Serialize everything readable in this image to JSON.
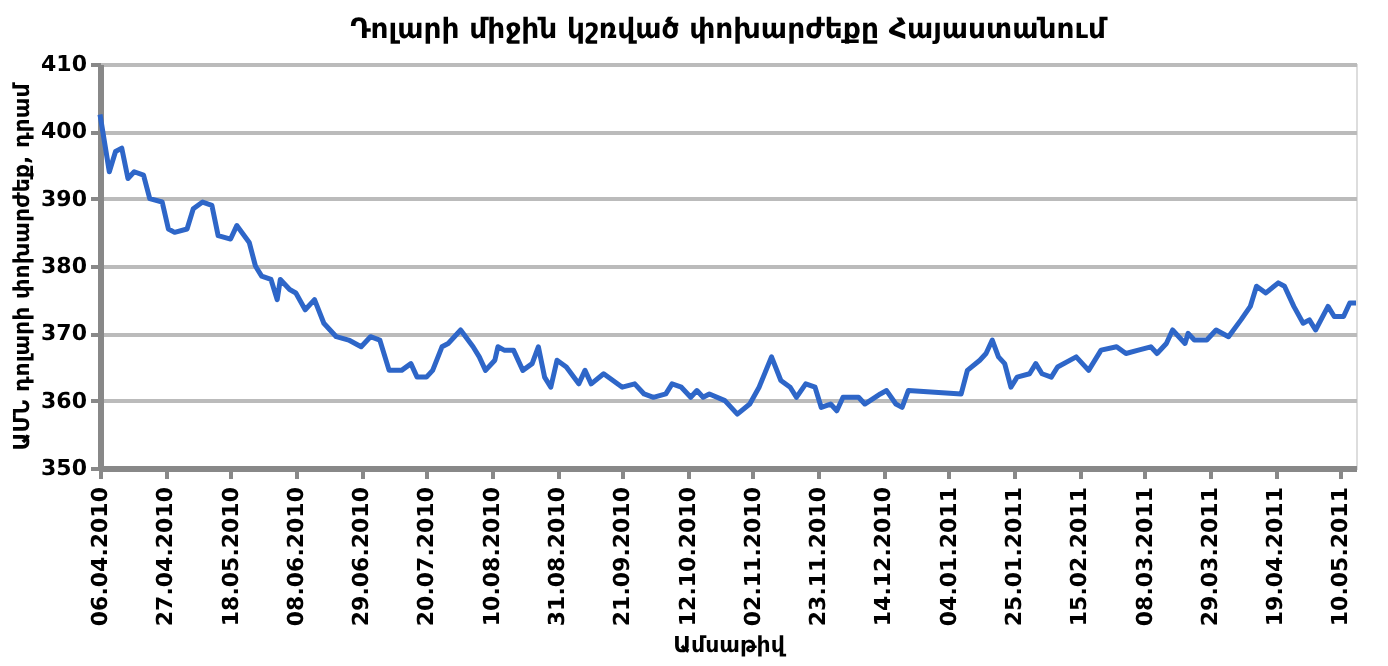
{
  "chart_data": {
    "type": "line",
    "title": "Դոլարի միջին կշռված փոխարժեքը Հայաստանում",
    "xlabel": "Ամսաթիվ",
    "ylabel": "ԱՄՆ դոլարի փոխարժեք, դրամ",
    "x": [
      "2010-04-06",
      "2010-04-09",
      "2010-04-11",
      "2010-04-13",
      "2010-04-15",
      "2010-04-17",
      "2010-04-20",
      "2010-04-22",
      "2010-04-26",
      "2010-04-28",
      "2010-04-30",
      "2010-05-04",
      "2010-05-06",
      "2010-05-09",
      "2010-05-12",
      "2010-05-14",
      "2010-05-18",
      "2010-05-20",
      "2010-05-24",
      "2010-05-26",
      "2010-05-28",
      "2010-05-31",
      "2010-06-02",
      "2010-06-03",
      "2010-06-06",
      "2010-06-08",
      "2010-06-11",
      "2010-06-14",
      "2010-06-17",
      "2010-06-21",
      "2010-06-25",
      "2010-06-29",
      "2010-07-02",
      "2010-07-05",
      "2010-07-08",
      "2010-07-12",
      "2010-07-15",
      "2010-07-17",
      "2010-07-20",
      "2010-07-22",
      "2010-07-25",
      "2010-07-27",
      "2010-07-31",
      "2010-08-04",
      "2010-08-06",
      "2010-08-08",
      "2010-08-11",
      "2010-08-12",
      "2010-08-14",
      "2010-08-17",
      "2010-08-20",
      "2010-08-23",
      "2010-08-25",
      "2010-08-27",
      "2010-08-29",
      "2010-08-31",
      "2010-09-03",
      "2010-09-07",
      "2010-09-09",
      "2010-09-11",
      "2010-09-15",
      "2010-09-21",
      "2010-09-25",
      "2010-09-28",
      "2010-10-01",
      "2010-10-05",
      "2010-10-07",
      "2010-10-10",
      "2010-10-13",
      "2010-10-15",
      "2010-10-17",
      "2010-10-19",
      "2010-10-24",
      "2010-10-28",
      "2010-11-01",
      "2010-11-04",
      "2010-11-08",
      "2010-11-11",
      "2010-11-14",
      "2010-11-16",
      "2010-11-19",
      "2010-11-22",
      "2010-11-24",
      "2010-11-27",
      "2010-11-29",
      "2010-12-01",
      "2010-12-06",
      "2010-12-08",
      "2010-12-13",
      "2010-12-15",
      "2010-12-18",
      "2010-12-20",
      "2010-12-22",
      "2011-01-08",
      "2011-01-10",
      "2011-01-14",
      "2011-01-16",
      "2011-01-18",
      "2011-01-20",
      "2011-01-22",
      "2011-01-24",
      "2011-01-26",
      "2011-01-30",
      "2011-02-01",
      "2011-02-03",
      "2011-02-06",
      "2011-02-08",
      "2011-02-14",
      "2011-02-16",
      "2011-02-18",
      "2011-02-22",
      "2011-02-27",
      "2011-03-02",
      "2011-03-06",
      "2011-03-10",
      "2011-03-12",
      "2011-03-15",
      "2011-03-17",
      "2011-03-19",
      "2011-03-21",
      "2011-03-22",
      "2011-03-24",
      "2011-03-28",
      "2011-03-31",
      "2011-04-04",
      "2011-04-08",
      "2011-04-11",
      "2011-04-13",
      "2011-04-16",
      "2011-04-20",
      "2011-04-22",
      "2011-04-25",
      "2011-04-28",
      "2011-04-30",
      "2011-05-02",
      "2011-05-06",
      "2011-05-08",
      "2011-05-11",
      "2011-05-13",
      "2011-05-15"
    ],
    "series": [
      {
        "color": "#2e66c8",
        "values": [
          402.5,
          394,
          397,
          397.5,
          393,
          394,
          393.5,
          390,
          389.5,
          385.5,
          385,
          385.5,
          388.5,
          389.5,
          389,
          384.5,
          384,
          386,
          383.5,
          380,
          378.5,
          378,
          375,
          378,
          376.5,
          376,
          373.5,
          375,
          371.5,
          369.5,
          369,
          368,
          369.5,
          369,
          364.5,
          364.5,
          365.5,
          363.5,
          363.5,
          364.5,
          368,
          368.5,
          370.5,
          368,
          366.5,
          364.5,
          366,
          368,
          367.5,
          367.5,
          364.5,
          365.5,
          368,
          363.5,
          362,
          366,
          365,
          362.5,
          364.5,
          362.5,
          364,
          362,
          362.5,
          361,
          360.5,
          361,
          362.5,
          362,
          360.5,
          361.5,
          360.5,
          361,
          360,
          358,
          359.5,
          362,
          366.5,
          363,
          362,
          360.5,
          362.5,
          362,
          359,
          359.5,
          358.5,
          360.5,
          360.5,
          359.5,
          361,
          361.5,
          359.5,
          359,
          361.5,
          361,
          364.5,
          366,
          367,
          369,
          366.5,
          365.5,
          362,
          363.5,
          364,
          365.5,
          364,
          363.5,
          365,
          366.5,
          365.5,
          364.5,
          367.5,
          368,
          367,
          367.5,
          368,
          367,
          368.5,
          370.5,
          369.5,
          368.5,
          370,
          369,
          369,
          370.5,
          369.5,
          372,
          374,
          377,
          376,
          377.5,
          377,
          374,
          371.5,
          372,
          370.5,
          374,
          372.5,
          372.5,
          374.5,
          374.5
        ]
      }
    ],
    "xlim": [
      "2010-04-06",
      "2011-05-15"
    ],
    "xticks": [
      {
        "value": "2010-04-06",
        "label": "06.04.2010"
      },
      {
        "value": "2010-04-27",
        "label": "27.04.2010"
      },
      {
        "value": "2010-05-18",
        "label": "18.05.2010"
      },
      {
        "value": "2010-06-08",
        "label": "08.06.2010"
      },
      {
        "value": "2010-06-29",
        "label": "29.06.2010"
      },
      {
        "value": "2010-07-20",
        "label": "20.07.2010"
      },
      {
        "value": "2010-08-10",
        "label": "10.08.2010"
      },
      {
        "value": "2010-08-31",
        "label": "31.08.2010"
      },
      {
        "value": "2010-09-21",
        "label": "21.09.2010"
      },
      {
        "value": "2010-10-12",
        "label": "12.10.2010"
      },
      {
        "value": "2010-11-02",
        "label": "02.11.2010"
      },
      {
        "value": "2010-11-23",
        "label": "23.11.2010"
      },
      {
        "value": "2010-12-14",
        "label": "14.12.2010"
      },
      {
        "value": "2011-01-04",
        "label": "04.01.2011"
      },
      {
        "value": "2011-01-25",
        "label": "25.01.2011"
      },
      {
        "value": "2011-02-15",
        "label": "15.02.2011"
      },
      {
        "value": "2011-03-08",
        "label": "08.03.2011"
      },
      {
        "value": "2011-03-29",
        "label": "29.03.2011"
      },
      {
        "value": "2011-04-19",
        "label": "19.04.2011"
      },
      {
        "value": "2011-05-10",
        "label": "10.05.2011"
      }
    ],
    "ylim": [
      350,
      410
    ],
    "yticks": [
      350,
      360,
      370,
      380,
      390,
      400,
      410
    ],
    "grid": "y",
    "legend": false,
    "marker": "none",
    "line_style": "solid"
  }
}
